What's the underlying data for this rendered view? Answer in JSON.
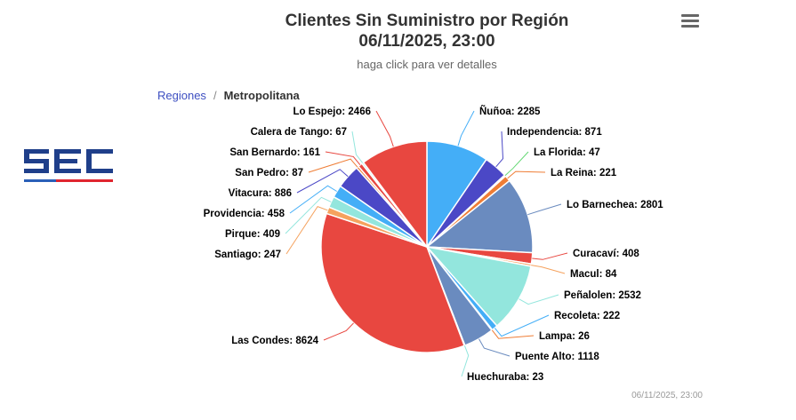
{
  "header": {
    "title": "Clientes Sin Suministro por Región",
    "date": "06/11/2025, 23:00",
    "subtitle": "haga click para ver detalles"
  },
  "breadcrumb": {
    "parent": "Regiones",
    "separator": "/",
    "current": "Metropolitana"
  },
  "logo": {
    "text": "SEC",
    "colors": [
      "#1f3f8a",
      "#2a5fb8",
      "#e0252f"
    ]
  },
  "footer": {
    "timestamp": "06/11/2025, 23:00"
  },
  "menu": {
    "icon": "hamburger-menu-icon"
  },
  "chart_data": {
    "type": "pie",
    "series": [
      {
        "slices": [
          {
            "name": "Ñuñoa",
            "value": 2285,
            "color": "#44aef7"
          },
          {
            "name": "Independencia",
            "value": 871,
            "color": "#4b48c6"
          },
          {
            "name": "La Florida",
            "value": 47,
            "color": "#63d873"
          },
          {
            "name": "La Reina",
            "value": 221,
            "color": "#ef7d35"
          },
          {
            "name": "Lo Barnechea",
            "value": 2801,
            "color": "#6a8bbf"
          },
          {
            "name": "Curacaví",
            "value": 408,
            "color": "#e84740"
          },
          {
            "name": "Macul",
            "value": 84,
            "color": "#f5a25e"
          },
          {
            "name": "Peñalolen",
            "value": 2532,
            "color": "#93e6dd"
          },
          {
            "name": "Recoleta",
            "value": 222,
            "color": "#44aef7"
          },
          {
            "name": "Lampa",
            "value": 26,
            "color": "#ef7d35"
          },
          {
            "name": "Puente Alto",
            "value": 1118,
            "color": "#6a8bbf"
          },
          {
            "name": "Huechuraba",
            "value": 23,
            "color": "#93e6dd"
          },
          {
            "name": "Las Condes",
            "value": 8624,
            "color": "#e84740"
          },
          {
            "name": "Santiago",
            "value": 247,
            "color": "#f5a25e"
          },
          {
            "name": "Pirque",
            "value": 409,
            "color": "#93e6dd"
          },
          {
            "name": "Providencia",
            "value": 458,
            "color": "#44aef7"
          },
          {
            "name": "Vitacura",
            "value": 886,
            "color": "#4b48c6"
          },
          {
            "name": "San Pedro",
            "value": 87,
            "color": "#ef7d35"
          },
          {
            "name": "San Bernardo",
            "value": 161,
            "color": "#e84740"
          },
          {
            "name": "Calera de Tango",
            "value": 67,
            "color": "#93e6dd"
          },
          {
            "name": "Lo Espejo",
            "value": 2466,
            "color": "#e84740"
          }
        ]
      }
    ]
  }
}
